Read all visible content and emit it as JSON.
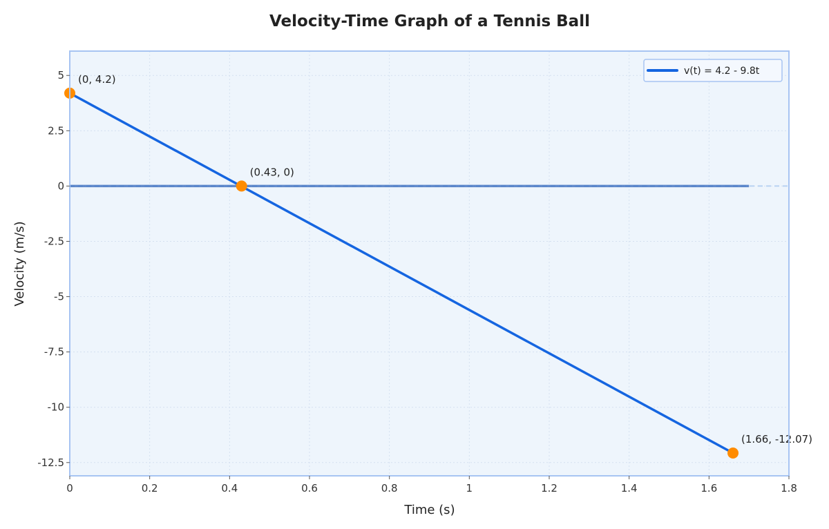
{
  "colors": {
    "line": "#1565e0",
    "marker": "#ff8c00",
    "plot_background": "#eef5fc",
    "frame": "#a7c4f2",
    "grid": "#d4e0f0",
    "zero_line": "#b9d2f2"
  },
  "chart_data": {
    "type": "line",
    "title": "Velocity-Time Graph of a Tennis Ball",
    "xlabel": "Time (s)",
    "ylabel": "Velocity (m/s)",
    "xlim": [
      0,
      1.8
    ],
    "ylim": [
      -13.1,
      6.1
    ],
    "grid": true,
    "legend_position": "top-right",
    "x_ticks": [
      0,
      0.2,
      0.4,
      0.6,
      0.8,
      1,
      1.2,
      1.4,
      1.6,
      1.8
    ],
    "x_tick_labels": [
      "0",
      "0.2",
      "0.4",
      "0.6",
      "0.8",
      "1",
      "1.2",
      "1.4",
      "1.6",
      "1.8"
    ],
    "y_ticks": [
      5,
      2.5,
      0,
      -2.5,
      -5,
      -7.5,
      -10,
      -12.5
    ],
    "y_tick_labels": [
      "5",
      "2.5",
      "0",
      "-2.5",
      "-5",
      "-7.5",
      "-10",
      "-12.5"
    ],
    "series": [
      {
        "name": "v(t) = 4.2 - 9.8t",
        "x": [
          0,
          1.66
        ],
        "y": [
          4.2,
          -12.07
        ]
      }
    ],
    "zero_line": {
      "x": [
        0,
        1.7
      ],
      "y": 0
    },
    "points": [
      {
        "x": 0,
        "y": 4.2,
        "label": "(0, 4.2)"
      },
      {
        "x": 0.43,
        "y": 0,
        "label": "(0.43, 0)"
      },
      {
        "x": 1.66,
        "y": -12.07,
        "label": "(1.66, -12.07)"
      }
    ]
  }
}
